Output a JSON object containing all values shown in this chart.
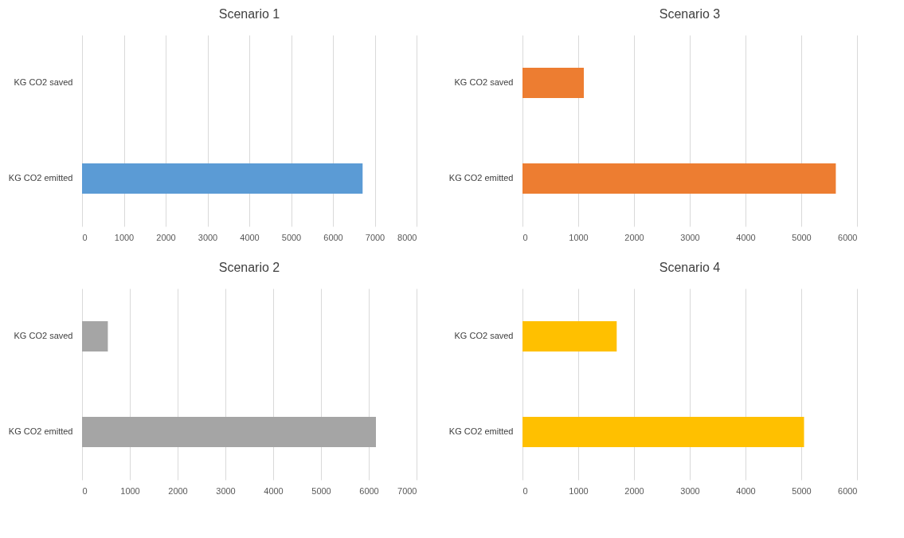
{
  "chart_data": [
    {
      "type": "bar",
      "orientation": "horizontal",
      "title": "Scenario 1",
      "categories": [
        "KG CO2 saved",
        "KG CO2 emitted"
      ],
      "values": [
        0,
        6710
      ],
      "color": "#5b9bd5",
      "xlim": [
        0,
        8000
      ],
      "xticks": [
        0,
        1000,
        2000,
        3000,
        4000,
        5000,
        6000,
        7000,
        8000
      ],
      "grid": "x"
    },
    {
      "type": "bar",
      "orientation": "horizontal",
      "title": "Scenario 3",
      "categories": [
        "KG CO2 saved",
        "KG CO2 emitted"
      ],
      "values": [
        1100,
        5620
      ],
      "color": "#ed7d31",
      "xlim": [
        0,
        6000
      ],
      "xticks": [
        0,
        1000,
        2000,
        3000,
        4000,
        5000,
        6000
      ],
      "grid": "x"
    },
    {
      "type": "bar",
      "orientation": "horizontal",
      "title": "Scenario 2",
      "categories": [
        "KG CO2 saved",
        "KG CO2 emitted"
      ],
      "values": [
        540,
        6150
      ],
      "color": "#a5a5a5",
      "xlim": [
        0,
        7000
      ],
      "xticks": [
        0,
        1000,
        2000,
        3000,
        4000,
        5000,
        6000,
        7000
      ],
      "grid": "x"
    },
    {
      "type": "bar",
      "orientation": "horizontal",
      "title": "Scenario 4",
      "categories": [
        "KG CO2 saved",
        "KG CO2 emitted"
      ],
      "values": [
        1690,
        5050
      ],
      "color": "#ffc000",
      "xlim": [
        0,
        6000
      ],
      "xticks": [
        0,
        1000,
        2000,
        3000,
        4000,
        5000,
        6000
      ],
      "grid": "x"
    }
  ]
}
